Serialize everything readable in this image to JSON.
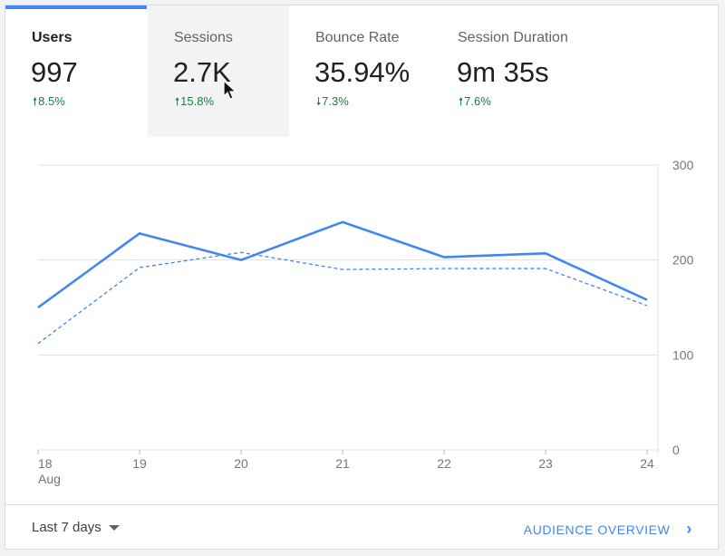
{
  "metrics": [
    {
      "label": "Users",
      "value": "997",
      "delta": "8.5%",
      "direction": "up"
    },
    {
      "label": "Sessions",
      "value": "2.7K",
      "delta": "15.8%",
      "direction": "up"
    },
    {
      "label": "Bounce Rate",
      "value": "35.94%",
      "delta": "7.3%",
      "direction": "down"
    },
    {
      "label": "Session Duration",
      "value": "9m 35s",
      "delta": "7.6%",
      "direction": "up"
    }
  ],
  "chart_data": {
    "type": "line",
    "categories": [
      "18",
      "19",
      "20",
      "21",
      "22",
      "23",
      "24"
    ],
    "x_sublabel": "Aug",
    "series": [
      {
        "values": [
          150,
          228,
          200,
          240,
          203,
          207,
          158
        ],
        "style": "solid"
      },
      {
        "values": [
          112,
          192,
          208,
          190,
          191,
          191,
          152
        ],
        "style": "dashed"
      }
    ],
    "y_ticks": [
      "300",
      "200",
      "100",
      "0"
    ],
    "ylim": [
      0,
      300
    ],
    "grid": true,
    "colors": {
      "line": "#4285f4",
      "grid": "#e0e0e0"
    }
  },
  "footer": {
    "range_label": "Last 7 days",
    "link_label": "AUDIENCE OVERVIEW",
    "link_chevron": "›"
  },
  "colors": {
    "accent": "#4285f4",
    "positive": "#188038"
  }
}
